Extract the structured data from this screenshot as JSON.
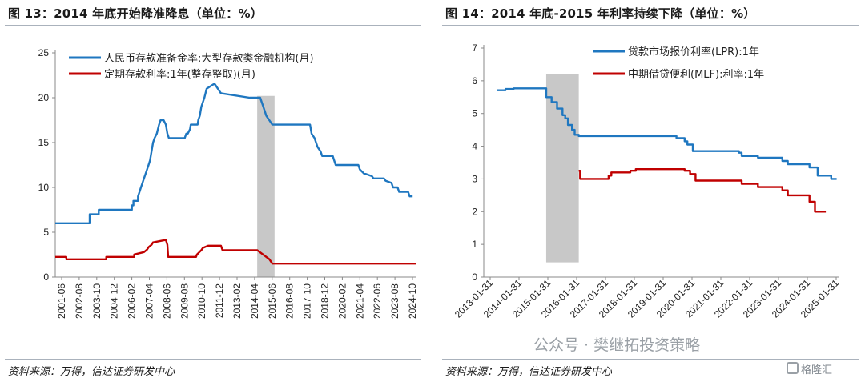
{
  "chart_data": [
    {
      "type": "line",
      "title": "图 13：2014 年底开始降准降息（单位：%）",
      "source": "资料来源：万得，信达证券研发中心",
      "xlabel": "",
      "ylabel": "",
      "ylim": [
        0,
        25
      ],
      "yticks": [
        0,
        5,
        10,
        15,
        20,
        25
      ],
      "x_tick_labels": [
        "2001-06",
        "2002-08",
        "2003-10",
        "2004-12",
        "2006-02",
        "2007-04",
        "2008-06",
        "2009-08",
        "2010-10",
        "2011-12",
        "2013-02",
        "2014-04",
        "2015-06",
        "2016-08",
        "2017-10",
        "2018-12",
        "2020-02",
        "2021-04",
        "2022-06",
        "2023-08",
        "2024-10"
      ],
      "xlim": [
        2001.42,
        2025.3
      ],
      "legend_position": "top-left",
      "shaded_region": [
        2014.8,
        2015.95
      ],
      "series": [
        {
          "name": "人民币存款准备金率:大型存款类金融机构(月)",
          "color": "#1f77c0",
          "x": [
            2001.42,
            2003.7,
            2003.7,
            2004.3,
            2004.3,
            2006.5,
            2006.5,
            2006.6,
            2006.6,
            2006.9,
            2006.9,
            2007.0,
            2007.1,
            2007.2,
            2007.3,
            2007.4,
            2007.5,
            2007.6,
            2007.7,
            2007.8,
            2007.9,
            2008.0,
            2008.15,
            2008.3,
            2008.4,
            2008.5,
            2008.6,
            2008.75,
            2008.85,
            2008.95,
            2009.0,
            2010.0,
            2010.1,
            2010.2,
            2010.35,
            2010.4,
            2010.85,
            2010.9,
            2011.0,
            2011.1,
            2011.2,
            2011.3,
            2011.45,
            2011.9,
            2012.0,
            2012.2,
            2012.4,
            2014.3,
            2015.0,
            2015.1,
            2015.3,
            2015.4,
            2015.6,
            2015.8,
            2015.9,
            2016.2,
            2018.3,
            2018.4,
            2018.6,
            2018.8,
            2019.0,
            2019.1,
            2019.8,
            2020.0,
            2020.4,
            2021.5,
            2021.6,
            2021.9,
            2022.0,
            2022.4,
            2022.5,
            2023.2,
            2023.3,
            2023.7,
            2023.8,
            2024.1,
            2024.2,
            2024.8,
            2024.9,
            2025.1
          ],
          "values": [
            6.0,
            6.0,
            7.0,
            7.0,
            7.5,
            7.5,
            8.0,
            8.0,
            8.5,
            8.5,
            9.0,
            9.5,
            10.0,
            10.5,
            11.0,
            11.5,
            12.0,
            12.5,
            13.0,
            14.0,
            15.0,
            15.5,
            16.0,
            17.0,
            17.5,
            17.5,
            17.5,
            17.0,
            16.0,
            15.5,
            15.5,
            15.5,
            16.0,
            16.0,
            16.5,
            17.0,
            17.0,
            17.5,
            18.0,
            19.0,
            19.5,
            20.0,
            21.0,
            21.5,
            21.5,
            21.0,
            20.5,
            20.0,
            20.0,
            19.5,
            18.5,
            18.0,
            17.5,
            17.0,
            17.0,
            17.0,
            17.0,
            16.0,
            15.5,
            14.5,
            14.0,
            13.5,
            13.5,
            12.5,
            12.5,
            12.5,
            12.0,
            11.5,
            11.5,
            11.25,
            11.0,
            11.0,
            10.75,
            10.5,
            10.0,
            10.0,
            9.5,
            9.5,
            9.0,
            9.0
          ]
        },
        {
          "name": "定期存款利率:1年(整存整取)(月)",
          "color": "#c00000",
          "x": [
            2001.42,
            2002.15,
            2002.15,
            2004.8,
            2004.8,
            2006.65,
            2006.65,
            2007.3,
            2007.5,
            2007.6,
            2007.8,
            2007.9,
            2008.75,
            2008.8,
            2008.85,
            2008.9,
            2010.75,
            2010.8,
            2010.95,
            2011.1,
            2011.2,
            2011.55,
            2012.4,
            2012.5,
            2014.8,
            2015.0,
            2015.2,
            2015.4,
            2015.6,
            2015.8,
            2025.3
          ],
          "values": [
            2.25,
            2.25,
            1.98,
            1.98,
            2.25,
            2.25,
            2.52,
            2.79,
            3.06,
            3.33,
            3.6,
            3.87,
            4.14,
            3.87,
            3.6,
            2.25,
            2.25,
            2.5,
            2.75,
            3.0,
            3.25,
            3.5,
            3.5,
            3.0,
            3.0,
            2.75,
            2.5,
            2.25,
            2.0,
            1.5,
            1.5
          ]
        }
      ]
    },
    {
      "type": "line",
      "title": "图 14：2014 年底-2015 年利率持续下降（单位：%）",
      "source": "资料来源：万得，信达证券研发中心",
      "xlabel": "",
      "ylabel": "",
      "ylim": [
        0,
        7
      ],
      "yticks": [
        0,
        1,
        2,
        3,
        4,
        5,
        6,
        7
      ],
      "x_tick_labels": [
        "2013-01-31",
        "2014-01-31",
        "2015-01-31",
        "2016-01-31",
        "2017-01-31",
        "2018-01-31",
        "2019-01-31",
        "2020-01-31",
        "2021-01-31",
        "2022-01-31",
        "2023-01-31",
        "2024-01-31",
        "2025-01-31"
      ],
      "xlim": [
        2012.5,
        2025.6
      ],
      "legend_position": "top-right",
      "shaded_region": [
        2014.8,
        2016.0
      ],
      "series": [
        {
          "name": "贷款市场报价利率(LPR):1年",
          "color": "#1f77c0",
          "x": [
            2013.0,
            2013.3,
            2013.3,
            2013.6,
            2013.6,
            2014.8,
            2014.8,
            2015.0,
            2015.0,
            2015.2,
            2015.2,
            2015.4,
            2015.4,
            2015.5,
            2015.5,
            2015.6,
            2015.6,
            2015.75,
            2015.75,
            2015.85,
            2015.85,
            2016.0,
            2016.0,
            2019.6,
            2019.6,
            2019.9,
            2019.9,
            2020.0,
            2020.0,
            2020.2,
            2020.2,
            2021.9,
            2021.9,
            2022.0,
            2022.0,
            2022.6,
            2022.6,
            2023.5,
            2023.5,
            2023.7,
            2023.7,
            2024.5,
            2024.5,
            2024.8,
            2024.8,
            2025.3,
            2025.3,
            2025.5
          ],
          "values": [
            5.71,
            5.71,
            5.75,
            5.75,
            5.77,
            5.77,
            5.5,
            5.5,
            5.35,
            5.35,
            5.15,
            5.15,
            4.95,
            4.95,
            4.85,
            4.85,
            4.65,
            4.65,
            4.5,
            4.5,
            4.35,
            4.35,
            4.31,
            4.31,
            4.25,
            4.25,
            4.15,
            4.15,
            4.05,
            4.05,
            3.85,
            3.85,
            3.8,
            3.8,
            3.7,
            3.7,
            3.65,
            3.65,
            3.55,
            3.55,
            3.45,
            3.45,
            3.35,
            3.35,
            3.1,
            3.1,
            3.0,
            3.0
          ]
        },
        {
          "name": "中期借贷便利(MLF):利率:1年",
          "color": "#c00000",
          "x": [
            2016.0,
            2016.05,
            2016.05,
            2017.1,
            2017.1,
            2017.2,
            2017.2,
            2017.9,
            2017.9,
            2018.1,
            2018.1,
            2019.9,
            2019.9,
            2020.1,
            2020.1,
            2020.3,
            2020.3,
            2022.0,
            2022.0,
            2022.6,
            2022.6,
            2023.5,
            2023.5,
            2023.7,
            2023.7,
            2024.5,
            2024.5,
            2024.7,
            2024.7,
            2024.8,
            2024.8,
            2025.1
          ],
          "values": [
            3.25,
            3.25,
            3.0,
            3.0,
            3.1,
            3.1,
            3.2,
            3.2,
            3.25,
            3.25,
            3.3,
            3.3,
            3.25,
            3.25,
            3.15,
            3.15,
            2.95,
            2.95,
            2.85,
            2.85,
            2.75,
            2.75,
            2.65,
            2.65,
            2.5,
            2.5,
            2.3,
            2.3,
            2.0,
            2.0,
            2.0,
            2.0
          ]
        }
      ]
    }
  ],
  "watermark": {
    "text": "公众号 · 樊继拓投资策略",
    "brand": "格隆汇"
  },
  "colors": {
    "blue": "#1f77c0",
    "red": "#c00000",
    "shade": "#c8c8c8",
    "rule": "#aab2bc"
  }
}
